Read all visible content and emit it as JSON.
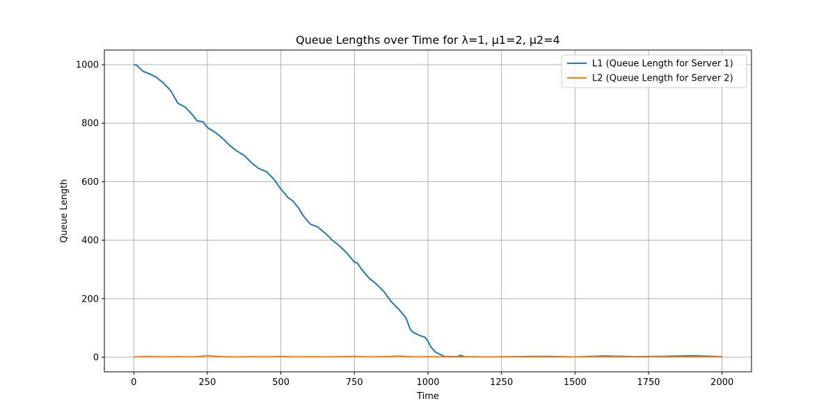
{
  "chart_data": {
    "type": "line",
    "title": "Queue Lengths over Time for λ=1, μ1=2, μ2=4",
    "xlabel": "Time",
    "ylabel": "Queue Length",
    "xlim": [
      -100,
      2100
    ],
    "ylim": [
      -50,
      1050
    ],
    "xticks": [
      0,
      250,
      500,
      750,
      1000,
      1250,
      1500,
      1750,
      2000
    ],
    "xtick_labels": [
      "0",
      "250",
      "500",
      "750",
      "1000",
      "1250",
      "1500",
      "1750",
      "2000"
    ],
    "yticks": [
      0,
      200,
      400,
      600,
      800,
      1000
    ],
    "ytick_labels": [
      "0",
      "200",
      "400",
      "600",
      "800",
      "1000"
    ],
    "grid": true,
    "legend_position": "top-right",
    "series": [
      {
        "name": "L1 (Queue Length for Server 1)",
        "color": "#1f77b4",
        "points": [
          [
            0,
            1000
          ],
          [
            10,
            998
          ],
          [
            20,
            988
          ],
          [
            30,
            978
          ],
          [
            50,
            970
          ],
          [
            75,
            958
          ],
          [
            100,
            938
          ],
          [
            125,
            912
          ],
          [
            150,
            868
          ],
          [
            175,
            855
          ],
          [
            200,
            828
          ],
          [
            215,
            808
          ],
          [
            235,
            805
          ],
          [
            250,
            785
          ],
          [
            275,
            770
          ],
          [
            300,
            750
          ],
          [
            325,
            725
          ],
          [
            350,
            705
          ],
          [
            375,
            690
          ],
          [
            400,
            665
          ],
          [
            425,
            645
          ],
          [
            450,
            635
          ],
          [
            475,
            610
          ],
          [
            500,
            575
          ],
          [
            525,
            545
          ],
          [
            540,
            535
          ],
          [
            560,
            510
          ],
          [
            575,
            485
          ],
          [
            600,
            455
          ],
          [
            625,
            445
          ],
          [
            650,
            425
          ],
          [
            675,
            400
          ],
          [
            700,
            380
          ],
          [
            725,
            355
          ],
          [
            750,
            325
          ],
          [
            760,
            322
          ],
          [
            775,
            300
          ],
          [
            800,
            270
          ],
          [
            825,
            250
          ],
          [
            850,
            225
          ],
          [
            875,
            190
          ],
          [
            900,
            165
          ],
          [
            925,
            135
          ],
          [
            940,
            95
          ],
          [
            950,
            85
          ],
          [
            970,
            75
          ],
          [
            990,
            68
          ],
          [
            1000,
            55
          ],
          [
            1010,
            35
          ],
          [
            1025,
            18
          ],
          [
            1040,
            10
          ],
          [
            1055,
            3
          ],
          [
            1100,
            2
          ],
          [
            1110,
            6
          ],
          [
            1125,
            2
          ],
          [
            1200,
            1
          ],
          [
            1300,
            2
          ],
          [
            1400,
            3
          ],
          [
            1500,
            1
          ],
          [
            1600,
            4
          ],
          [
            1700,
            2
          ],
          [
            1800,
            3
          ],
          [
            1900,
            5
          ],
          [
            2000,
            2
          ]
        ]
      },
      {
        "name": "L2 (Queue Length for Server 2)",
        "color": "#ff7f0e",
        "points": [
          [
            0,
            1
          ],
          [
            50,
            3
          ],
          [
            100,
            1
          ],
          [
            150,
            2
          ],
          [
            200,
            1
          ],
          [
            250,
            5
          ],
          [
            300,
            2
          ],
          [
            350,
            1
          ],
          [
            400,
            2
          ],
          [
            450,
            1
          ],
          [
            500,
            3
          ],
          [
            550,
            1
          ],
          [
            600,
            2
          ],
          [
            650,
            1
          ],
          [
            700,
            2
          ],
          [
            750,
            3
          ],
          [
            800,
            1
          ],
          [
            850,
            2
          ],
          [
            900,
            4
          ],
          [
            950,
            1
          ],
          [
            1000,
            2
          ],
          [
            1050,
            1
          ],
          [
            1100,
            1
          ],
          [
            1200,
            1
          ],
          [
            1300,
            1
          ],
          [
            1400,
            1
          ],
          [
            1500,
            1
          ],
          [
            1600,
            1
          ],
          [
            1700,
            1
          ],
          [
            1800,
            1
          ],
          [
            1900,
            1
          ],
          [
            2000,
            1
          ]
        ]
      }
    ]
  }
}
